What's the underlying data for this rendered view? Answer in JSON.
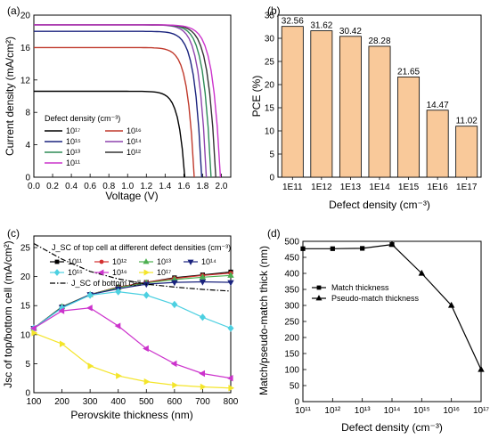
{
  "chart_data": [
    {
      "panel": "(a)",
      "type": "line",
      "xlabel": "Voltage (V)",
      "ylabel": "Current density (mA/cm²)",
      "xlim": [
        0,
        2.1
      ],
      "ylim": [
        0,
        20
      ],
      "xticks": [
        "0.0",
        "0.2",
        "0.4",
        "0.6",
        "0.8",
        "1.0",
        "1.2",
        "1.4",
        "1.6",
        "1.8",
        "2.0"
      ],
      "yticks": [
        "0",
        "4",
        "8",
        "12",
        "16",
        "20"
      ],
      "legend_title": "Defect density (cm⁻³)",
      "series": [
        {
          "name": "10¹⁷",
          "color": "#000000",
          "jsc": 10.6,
          "voc": 1.61
        },
        {
          "name": "10¹⁶",
          "color": "#c0392b",
          "jsc": 16.0,
          "voc": 1.71
        },
        {
          "name": "10¹⁵",
          "color": "#1a237e",
          "jsc": 18.0,
          "voc": 1.79
        },
        {
          "name": "10¹⁴",
          "color": "#8e44ad",
          "jsc": 18.8,
          "voc": 1.84
        },
        {
          "name": "10¹³",
          "color": "#2e8b57",
          "jsc": 18.8,
          "voc": 1.89
        },
        {
          "name": "10¹²",
          "color": "#333333",
          "jsc": 18.8,
          "voc": 1.94
        },
        {
          "name": "10¹¹",
          "color": "#cc33cc",
          "jsc": 18.8,
          "voc": 1.99
        }
      ]
    },
    {
      "panel": "(b)",
      "type": "bar",
      "xlabel": "Defect density (cm⁻³)",
      "ylabel": "PCE (%)",
      "ylim": [
        0,
        35
      ],
      "yticks": [
        "0",
        "5",
        "10",
        "15",
        "20",
        "25",
        "30",
        "35"
      ],
      "categories": [
        "1E11",
        "1E12",
        "1E13",
        "1E14",
        "1E15",
        "1E16",
        "1E17"
      ],
      "values": [
        32.56,
        31.62,
        30.42,
        28.28,
        21.65,
        14.47,
        11.02
      ],
      "value_labels": [
        "32.56",
        "31.62",
        "30.42",
        "28.28",
        "21.65",
        "14.47",
        "11.02"
      ],
      "bar_color": "#f9c99a"
    },
    {
      "panel": "(c)",
      "type": "line",
      "xlabel": "Perovskite thickness (nm)",
      "ylabel": "Jsc of top/bottom cell (mA/cm²)",
      "xlim": [
        100,
        800
      ],
      "ylim": [
        0,
        27
      ],
      "xticks": [
        "100",
        "200",
        "300",
        "400",
        "500",
        "600",
        "700",
        "800"
      ],
      "yticks": [
        "0",
        "5",
        "10",
        "15",
        "20",
        "25"
      ],
      "legend_title": "J_SC of top cell at different defect densities (cm⁻³)",
      "x": [
        100,
        200,
        300,
        400,
        500,
        600,
        700,
        800
      ],
      "series": [
        {
          "name": "10¹¹",
          "color": "#000000",
          "marker": "square",
          "values": [
            11.1,
            14.8,
            16.9,
            18.2,
            19.0,
            19.8,
            20.3,
            20.8
          ]
        },
        {
          "name": "10¹²",
          "color": "#d32f2f",
          "marker": "circle",
          "values": [
            11.1,
            14.8,
            16.9,
            18.2,
            19.0,
            19.7,
            20.2,
            20.6
          ]
        },
        {
          "name": "10¹³",
          "color": "#4caf50",
          "marker": "triangle-up",
          "values": [
            11.1,
            14.8,
            16.9,
            18.1,
            18.9,
            19.5,
            19.9,
            20.2
          ]
        },
        {
          "name": "10¹⁴",
          "color": "#1a237e",
          "marker": "triangle-down",
          "values": [
            11.1,
            14.7,
            16.9,
            17.9,
            18.7,
            19.0,
            19.1,
            19.0
          ]
        },
        {
          "name": "10¹⁵",
          "color": "#4dd0e1",
          "marker": "diamond",
          "values": [
            11.1,
            14.6,
            16.8,
            17.4,
            16.8,
            15.2,
            13.0,
            11.1
          ]
        },
        {
          "name": "10¹⁶",
          "color": "#cc33cc",
          "marker": "triangle-left",
          "values": [
            11.1,
            14.1,
            14.6,
            11.5,
            7.6,
            5.0,
            3.3,
            2.5
          ]
        },
        {
          "name": "10¹⁷",
          "color": "#f4e52a",
          "marker": "triangle-right",
          "values": [
            10.3,
            8.4,
            4.6,
            2.9,
            1.9,
            1.3,
            1.0,
            0.8
          ]
        },
        {
          "name": "J_SC of bottom cell",
          "color": "#000000",
          "marker": "none",
          "dash": "dashdot",
          "values": [
            25.7,
            23.0,
            20.9,
            19.6,
            18.7,
            18.2,
            17.8,
            17.5
          ]
        }
      ]
    },
    {
      "panel": "(d)",
      "type": "line",
      "xlabel": "Defect density (cm⁻³)",
      "ylabel": "Match/pseudo-match thick (nm)",
      "xlim": [
        11,
        17
      ],
      "ylim": [
        0,
        500
      ],
      "xticks": [
        "10¹¹",
        "10¹²",
        "10¹³",
        "10¹⁴",
        "10¹⁵",
        "10¹⁶",
        "10¹⁷"
      ],
      "yticks": [
        "0",
        "50",
        "100",
        "150",
        "200",
        "250",
        "300",
        "350",
        "400",
        "450",
        "500"
      ],
      "series": [
        {
          "name": "Match thickness",
          "marker": "square",
          "x": [
            11,
            12,
            13,
            14
          ],
          "values": [
            477,
            477,
            478,
            490
          ]
        },
        {
          "name": "Pseudo-match thickness",
          "marker": "triangle-up",
          "x": [
            14,
            15,
            16,
            17
          ],
          "values": [
            490,
            400,
            300,
            100
          ]
        }
      ]
    }
  ]
}
